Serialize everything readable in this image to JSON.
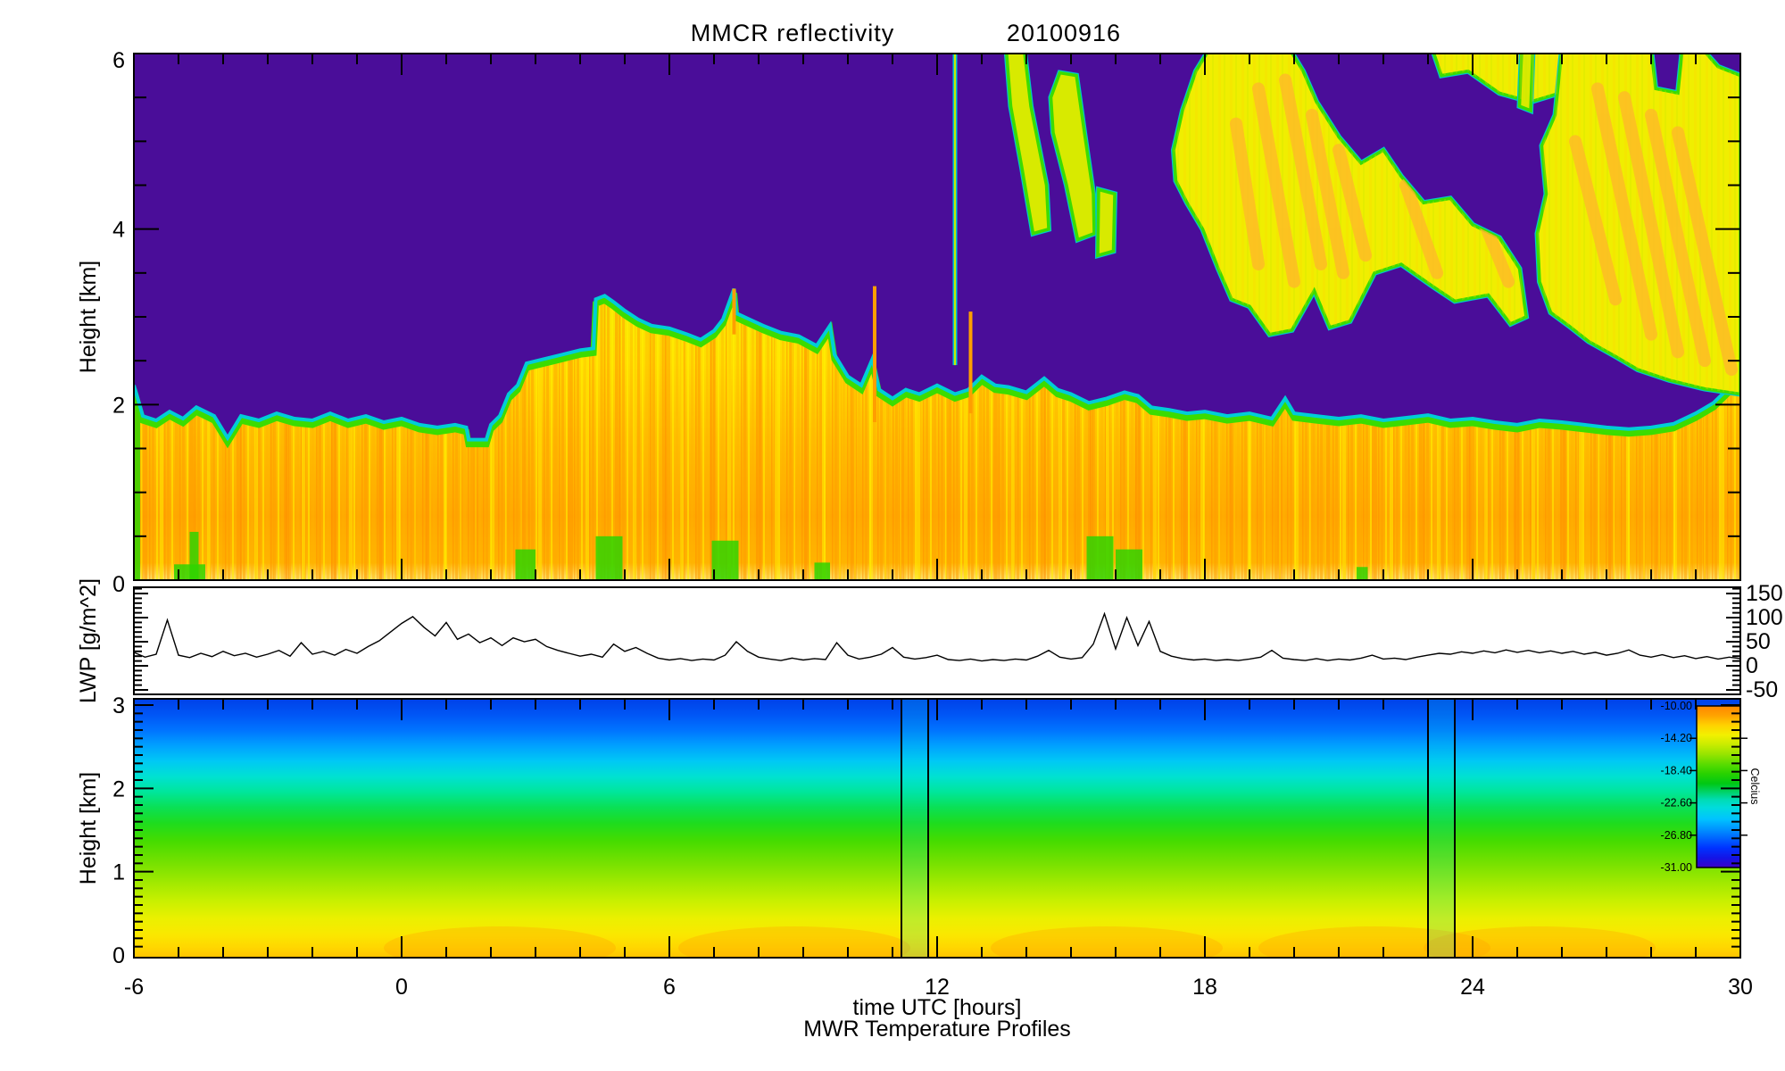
{
  "title": {
    "text": "MMCR reflectivity",
    "date": "20100916"
  },
  "x_axis": {
    "title": "time UTC [hours]",
    "subtitle": "MWR Temperature Profiles",
    "ticks": [
      -6,
      0,
      6,
      12,
      18,
      24,
      30
    ],
    "minor_step_hours": 1,
    "range": [
      -6,
      30
    ]
  },
  "panels": {
    "reflectivity": {
      "ylabel": "Height [km]",
      "yticks": [
        0,
        2,
        4,
        6
      ],
      "yrange": [
        0,
        6
      ],
      "background_color": "#4A0D99"
    },
    "lwp": {
      "ylabel": "LWP [g/m^2]",
      "yticks": [
        150,
        100,
        50,
        0,
        -50
      ],
      "minor_step": 10,
      "line_color": "#000000"
    },
    "temperature": {
      "ylabel": "Height [km]",
      "yticks": [
        0,
        1,
        2,
        3
      ],
      "yrange": [
        0,
        3
      ]
    }
  },
  "colorbar": {
    "title": "Celcius",
    "labels": [
      "-10.00",
      "-14.20",
      "-18.40",
      "-22.60",
      "-26.80",
      "-31.00"
    ],
    "values": [
      -10.0,
      -14.2,
      -18.4,
      -22.6,
      -26.8,
      -31.0
    ],
    "range": [
      -10,
      -31
    ],
    "stops": [
      [
        0,
        "#FF8700"
      ],
      [
        0.06,
        "#FFA300"
      ],
      [
        0.12,
        "#FFD200"
      ],
      [
        0.18,
        "#F2F000"
      ],
      [
        0.24,
        "#C8EC00"
      ],
      [
        0.3,
        "#96E400"
      ],
      [
        0.36,
        "#5ADC00"
      ],
      [
        0.42,
        "#28D200"
      ],
      [
        0.48,
        "#00C814"
      ],
      [
        0.53,
        "#00D264"
      ],
      [
        0.58,
        "#00DCB4"
      ],
      [
        0.63,
        "#00DCDC"
      ],
      [
        0.7,
        "#00C3FF"
      ],
      [
        0.76,
        "#0096FF"
      ],
      [
        0.82,
        "#0064FF"
      ],
      [
        0.88,
        "#0032FF"
      ],
      [
        0.94,
        "#1414E6"
      ],
      [
        1,
        "#3C00C8"
      ]
    ]
  },
  "chart_data": [
    {
      "type": "heatmap",
      "name": "MMCR reflectivity time-height field",
      "x_unit": "time UTC [hours]",
      "y_unit": "Height [km]",
      "x_range": [
        -6,
        30
      ],
      "y_range": [
        0,
        6
      ],
      "background_color": "#4A0D99",
      "palette": {
        "cloud_core": "#FFC000",
        "cloud_yellow": "#F5EC00",
        "edge_green": "#3CDC00",
        "edge_cyan": "#00CDD7",
        "upper_lime": "#D8EA00",
        "streak_orange": "#FF9E00"
      },
      "cloud_fill_stops": [
        [
          0,
          "#F5EC00"
        ],
        [
          0.25,
          "#FFDC00"
        ],
        [
          0.5,
          "#FFC000"
        ],
        [
          0.78,
          "#FFA800"
        ],
        [
          0.94,
          "#FFB400"
        ],
        [
          1,
          "#FFE36E"
        ]
      ],
      "cloud_top_profile": [
        [
          -6,
          2.2
        ],
        [
          -5.8,
          1.85
        ],
        [
          -5.5,
          1.8
        ],
        [
          -5.2,
          1.9
        ],
        [
          -4.9,
          1.82
        ],
        [
          -4.6,
          1.95
        ],
        [
          -4.2,
          1.85
        ],
        [
          -3.9,
          1.6
        ],
        [
          -3.6,
          1.85
        ],
        [
          -3.2,
          1.8
        ],
        [
          -2.8,
          1.88
        ],
        [
          -2.4,
          1.82
        ],
        [
          -2,
          1.8
        ],
        [
          -1.6,
          1.88
        ],
        [
          -1.2,
          1.8
        ],
        [
          -0.8,
          1.85
        ],
        [
          -0.4,
          1.78
        ],
        [
          0,
          1.82
        ],
        [
          0.4,
          1.75
        ],
        [
          0.8,
          1.72
        ],
        [
          1.2,
          1.75
        ],
        [
          1.45,
          1.72
        ],
        [
          1.5,
          1.58
        ],
        [
          1.9,
          1.58
        ],
        [
          2,
          1.75
        ],
        [
          2.2,
          1.85
        ],
        [
          2.4,
          2.1
        ],
        [
          2.6,
          2.2
        ],
        [
          2.8,
          2.45
        ],
        [
          3.2,
          2.5
        ],
        [
          3.6,
          2.55
        ],
        [
          4,
          2.6
        ],
        [
          4.3,
          2.62
        ],
        [
          4.35,
          3.18
        ],
        [
          4.55,
          3.22
        ],
        [
          4.75,
          3.15
        ],
        [
          5,
          3.05
        ],
        [
          5.3,
          2.95
        ],
        [
          5.6,
          2.88
        ],
        [
          6,
          2.85
        ],
        [
          6.4,
          2.78
        ],
        [
          6.7,
          2.72
        ],
        [
          7,
          2.82
        ],
        [
          7.2,
          2.95
        ],
        [
          7.45,
          3.3
        ],
        [
          7.5,
          3.02
        ],
        [
          7.8,
          2.95
        ],
        [
          8.1,
          2.88
        ],
        [
          8.5,
          2.8
        ],
        [
          8.9,
          2.76
        ],
        [
          9.3,
          2.65
        ],
        [
          9.6,
          2.88
        ],
        [
          9.7,
          2.55
        ],
        [
          10,
          2.3
        ],
        [
          10.3,
          2.2
        ],
        [
          10.55,
          2.5
        ],
        [
          10.7,
          2.15
        ],
        [
          11,
          2.05
        ],
        [
          11.3,
          2.15
        ],
        [
          11.6,
          2.1
        ],
        [
          12,
          2.2
        ],
        [
          12.4,
          2.1
        ],
        [
          12.7,
          2.15
        ],
        [
          13,
          2.3
        ],
        [
          13.3,
          2.2
        ],
        [
          13.6,
          2.18
        ],
        [
          14,
          2.12
        ],
        [
          14.4,
          2.28
        ],
        [
          14.7,
          2.15
        ],
        [
          15,
          2.1
        ],
        [
          15.4,
          2.0
        ],
        [
          15.8,
          2.05
        ],
        [
          16.2,
          2.12
        ],
        [
          16.5,
          2.08
        ],
        [
          16.8,
          1.95
        ],
        [
          17.2,
          1.92
        ],
        [
          17.6,
          1.88
        ],
        [
          18,
          1.9
        ],
        [
          18.5,
          1.85
        ],
        [
          19,
          1.88
        ],
        [
          19.5,
          1.82
        ],
        [
          19.8,
          2.05
        ],
        [
          20,
          1.88
        ],
        [
          20.5,
          1.85
        ],
        [
          21,
          1.82
        ],
        [
          21.5,
          1.85
        ],
        [
          22,
          1.8
        ],
        [
          22.5,
          1.83
        ],
        [
          23,
          1.86
        ],
        [
          23.5,
          1.8
        ],
        [
          24,
          1.82
        ],
        [
          24.5,
          1.78
        ],
        [
          25,
          1.75
        ],
        [
          25.5,
          1.8
        ],
        [
          26,
          1.78
        ],
        [
          26.5,
          1.75
        ],
        [
          27,
          1.72
        ],
        [
          27.5,
          1.7
        ],
        [
          28,
          1.72
        ],
        [
          28.5,
          1.76
        ],
        [
          29,
          1.88
        ],
        [
          29.4,
          2.0
        ],
        [
          29.7,
          2.15
        ],
        [
          30,
          2.3
        ]
      ],
      "upper_clouds": {
        "A1": [
          [
            13.55,
            6.05
          ],
          [
            13.95,
            6.05
          ],
          [
            14.1,
            5.4
          ],
          [
            14.45,
            4.5
          ],
          [
            14.5,
            4.0
          ],
          [
            14.15,
            3.95
          ],
          [
            13.9,
            4.7
          ],
          [
            13.65,
            5.4
          ]
        ],
        "A2": [
          [
            14.75,
            5.78
          ],
          [
            15.12,
            5.75
          ],
          [
            15.3,
            5.1
          ],
          [
            15.5,
            4.4
          ],
          [
            15.52,
            3.95
          ],
          [
            15.15,
            3.88
          ],
          [
            14.9,
            4.5
          ],
          [
            14.6,
            5.1
          ],
          [
            14.55,
            5.5
          ]
        ],
        "A3": [
          [
            15.62,
            4.45
          ],
          [
            15.98,
            4.4
          ],
          [
            15.95,
            3.75
          ],
          [
            15.6,
            3.7
          ]
        ],
        "B": [
          [
            17.3,
            4.9
          ],
          [
            17.5,
            5.35
          ],
          [
            17.8,
            5.8
          ],
          [
            18.1,
            6.05
          ],
          [
            19.9,
            6.05
          ],
          [
            20.2,
            5.8
          ],
          [
            20.5,
            5.45
          ],
          [
            21.0,
            5.05
          ],
          [
            21.5,
            4.75
          ],
          [
            22.0,
            4.9
          ],
          [
            22.4,
            4.6
          ],
          [
            22.9,
            4.3
          ],
          [
            23.5,
            4.35
          ],
          [
            24.0,
            4.05
          ],
          [
            24.6,
            3.9
          ],
          [
            25.05,
            3.55
          ],
          [
            25.2,
            3.0
          ],
          [
            24.85,
            2.92
          ],
          [
            24.35,
            3.25
          ],
          [
            23.6,
            3.18
          ],
          [
            23.1,
            3.35
          ],
          [
            22.4,
            3.6
          ],
          [
            21.8,
            3.5
          ],
          [
            21.25,
            2.95
          ],
          [
            20.8,
            2.88
          ],
          [
            20.45,
            3.3
          ],
          [
            19.95,
            2.85
          ],
          [
            19.45,
            2.8
          ],
          [
            19.0,
            3.12
          ],
          [
            18.6,
            3.2
          ],
          [
            18.3,
            3.55
          ],
          [
            17.95,
            4.0
          ],
          [
            17.6,
            4.3
          ],
          [
            17.35,
            4.55
          ]
        ],
        "B2": [
          [
            23.1,
            6.05
          ],
          [
            26.0,
            6.05
          ],
          [
            25.95,
            5.55
          ],
          [
            25.3,
            5.45
          ],
          [
            24.6,
            5.55
          ],
          [
            23.9,
            5.8
          ],
          [
            23.3,
            5.75
          ]
        ],
        "C": [
          [
            26.0,
            6.05
          ],
          [
            28.0,
            6.05
          ],
          [
            28.1,
            5.6
          ],
          [
            28.6,
            5.55
          ],
          [
            28.7,
            6.05
          ],
          [
            29.15,
            6.05
          ],
          [
            29.5,
            5.85
          ],
          [
            30,
            5.75
          ],
          [
            30,
            2.12
          ],
          [
            29.2,
            2.18
          ],
          [
            28.4,
            2.28
          ],
          [
            27.7,
            2.4
          ],
          [
            27.2,
            2.55
          ],
          [
            26.6,
            2.72
          ],
          [
            26.15,
            2.9
          ],
          [
            25.75,
            3.05
          ],
          [
            25.5,
            3.4
          ],
          [
            25.45,
            3.95
          ],
          [
            25.65,
            4.4
          ],
          [
            25.55,
            4.95
          ],
          [
            25.85,
            5.3
          ]
        ],
        "C2": [
          [
            25.1,
            6.05
          ],
          [
            25.35,
            6.05
          ],
          [
            25.3,
            5.35
          ],
          [
            25.05,
            5.4
          ]
        ]
      },
      "orange_streaks": [
        [
          19.2,
          5.6,
          20.0,
          3.4
        ],
        [
          19.8,
          5.7,
          20.6,
          3.6
        ],
        [
          20.4,
          5.3,
          21.1,
          3.5
        ],
        [
          21.0,
          4.9,
          21.6,
          3.7
        ],
        [
          18.7,
          5.2,
          19.2,
          3.6
        ],
        [
          26.8,
          5.6,
          28.0,
          2.8
        ],
        [
          27.4,
          5.5,
          28.6,
          2.6
        ],
        [
          28.0,
          5.3,
          29.2,
          2.5
        ],
        [
          28.6,
          5.1,
          29.8,
          2.4
        ],
        [
          26.3,
          5.0,
          27.2,
          3.2
        ],
        [
          24.0,
          4.4,
          24.8,
          3.4
        ],
        [
          22.5,
          4.5,
          23.2,
          3.5
        ]
      ],
      "vertical_cyan_line": {
        "t": 12.4,
        "h_range": [
          2.45,
          6.0
        ]
      },
      "orange_spikes": [
        [
          7.45,
          2.8,
          3.32
        ],
        [
          10.6,
          1.8,
          3.35
        ],
        [
          12.75,
          1.9,
          3.06
        ]
      ],
      "surface_green_patches": [
        [
          -6,
          -5.86,
          2.05
        ],
        [
          -5.1,
          -4.4,
          0.18
        ],
        [
          -4.75,
          -4.55,
          0.55
        ],
        [
          2.55,
          3.0,
          0.35
        ],
        [
          4.35,
          4.95,
          0.5
        ],
        [
          6.95,
          7.55,
          0.45
        ],
        [
          9.25,
          9.6,
          0.2
        ],
        [
          15.35,
          15.95,
          0.5
        ],
        [
          16.0,
          16.6,
          0.35
        ],
        [
          21.4,
          21.65,
          0.15
        ]
      ]
    },
    {
      "type": "line",
      "name": "MWR liquid water path",
      "ylabel": "LWP [g/m^2]",
      "xlabel": "time UTC [hours]",
      "yticks": [
        150,
        100,
        50,
        0,
        -50
      ],
      "t0": -6,
      "dt": 0.25,
      "values": [
        28,
        18,
        24,
        95,
        22,
        17,
        26,
        19,
        30,
        21,
        26,
        18,
        24,
        32,
        20,
        48,
        24,
        30,
        22,
        34,
        26,
        40,
        52,
        70,
        88,
        102,
        80,
        62,
        90,
        55,
        66,
        48,
        58,
        42,
        58,
        50,
        55,
        40,
        32,
        26,
        20,
        24,
        18,
        45,
        30,
        38,
        26,
        16,
        12,
        15,
        11,
        14,
        12,
        22,
        50,
        30,
        18,
        14,
        11,
        16,
        12,
        15,
        13,
        48,
        22,
        14,
        18,
        24,
        38,
        18,
        14,
        17,
        22,
        13,
        11,
        14,
        10,
        13,
        11,
        14,
        12,
        20,
        32,
        18,
        14,
        17,
        45,
        108,
        35,
        100,
        42,
        92,
        30,
        20,
        15,
        12,
        14,
        11,
        13,
        11,
        14,
        18,
        32,
        16,
        13,
        11,
        15,
        11,
        14,
        12,
        16,
        22,
        14,
        16,
        13,
        18,
        22,
        26,
        24,
        29,
        26,
        31,
        27,
        33,
        28,
        32,
        27,
        31,
        26,
        30,
        24,
        28,
        22,
        26,
        33,
        22,
        18,
        23,
        17,
        21,
        15,
        19,
        14,
        18,
        15
      ],
      "color": "#000000"
    },
    {
      "type": "heatmap",
      "name": "MWR temperature profile time-height field",
      "x_unit": "time UTC [hours]",
      "y_unit": "Height [km]",
      "x_range": [
        -6,
        30
      ],
      "y_range": [
        0,
        3
      ],
      "temp_range_celsius": [
        -31,
        -10
      ],
      "height_color_stops": [
        [
          0,
          "#0041E8"
        ],
        [
          0.06,
          "#0055F5"
        ],
        [
          0.12,
          "#0073FF"
        ],
        [
          0.18,
          "#00A0FF"
        ],
        [
          0.24,
          "#00C8F5"
        ],
        [
          0.3,
          "#00E1D2"
        ],
        [
          0.36,
          "#00E69B"
        ],
        [
          0.42,
          "#0AE055"
        ],
        [
          0.48,
          "#1EDC1E"
        ],
        [
          0.55,
          "#46DC00"
        ],
        [
          0.62,
          "#6EE000"
        ],
        [
          0.7,
          "#9BE800"
        ],
        [
          0.78,
          "#C8F000"
        ],
        [
          0.85,
          "#EBF000"
        ],
        [
          0.91,
          "#FAE800"
        ],
        [
          0.96,
          "#FFD700"
        ],
        [
          1,
          "#FFC300"
        ]
      ],
      "vertical_line_times": [
        11.2,
        11.8,
        23.0,
        23.6
      ],
      "cool_columns": [
        [
          11.2,
          11.8
        ],
        [
          23.0,
          23.6
        ]
      ],
      "warm_surface_blob_times": [
        2.2,
        8.8,
        15.8,
        21.8,
        25.5
      ]
    }
  ]
}
